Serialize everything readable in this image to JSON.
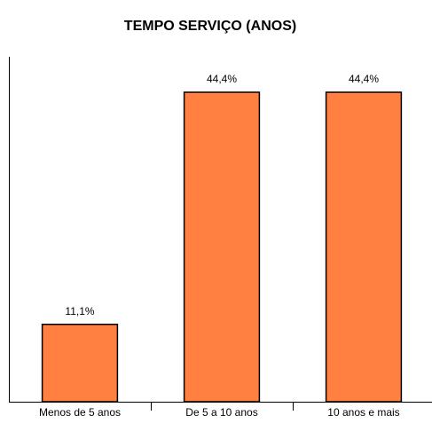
{
  "chart_data": {
    "type": "bar",
    "title": "TEMPO SERVIÇO (ANOS)",
    "categories": [
      "Menos de 5 anos",
      "De 5 a 10 anos",
      "10 anos e mais"
    ],
    "values": [
      11.1,
      44.4,
      44.4
    ],
    "value_labels": [
      "11,1%",
      "44,4%",
      "44,4%"
    ],
    "color": "#ff8040",
    "ylim": [
      0,
      50
    ],
    "grid": false
  }
}
